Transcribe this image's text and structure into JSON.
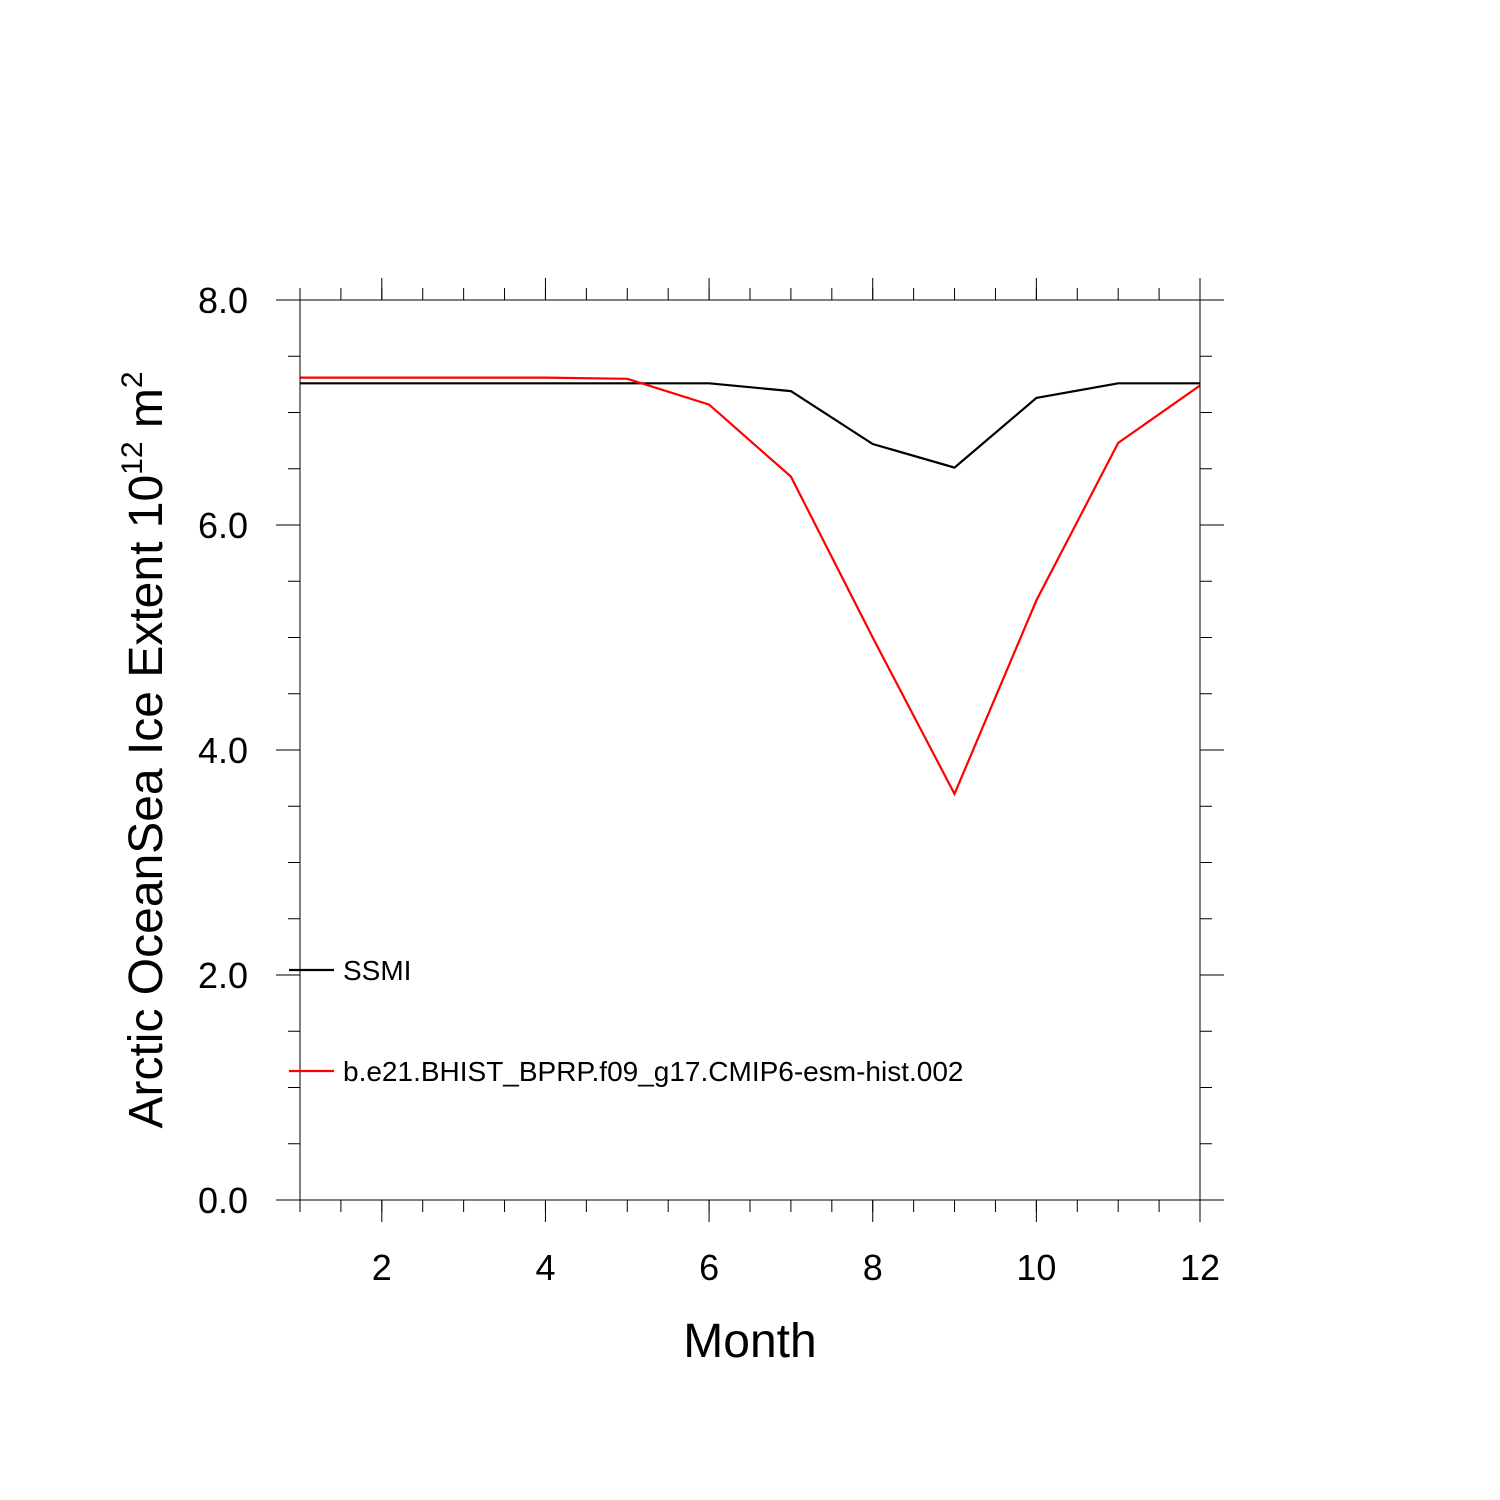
{
  "chart_data": {
    "type": "line",
    "xlabel": "Month",
    "ylabel": {
      "text": "Arctic OceanSea Ice Extent 10",
      "exponent": "12",
      "unit": " m",
      "unit_exponent": "2"
    },
    "xlim": [
      1,
      12
    ],
    "ylim": [
      0,
      8
    ],
    "x_ticks": [
      2,
      4,
      6,
      8,
      10,
      12
    ],
    "x_tick_labels": [
      "2",
      "4",
      "6",
      "8",
      "10",
      "12"
    ],
    "y_ticks": [
      0,
      2,
      4,
      6,
      8
    ],
    "y_tick_labels": [
      "0.0",
      "2.0",
      "4.0",
      "6.0",
      "8.0"
    ],
    "x_minor_step": 0.5,
    "y_minor_step": 0.5,
    "grid": false,
    "legend_placement": "lower-left",
    "x": [
      1,
      2,
      3,
      4,
      5,
      6,
      7,
      8,
      9,
      10,
      11,
      12
    ],
    "series": [
      {
        "name": "SSMI",
        "color": "#000000",
        "values": [
          7.26,
          7.26,
          7.26,
          7.26,
          7.26,
          7.26,
          7.19,
          6.72,
          6.51,
          7.13,
          7.26,
          7.26
        ]
      },
      {
        "name": "b.e21.BHIST_BPRP.f09_g17.CMIP6-esm-hist.002",
        "color": "#ff0000",
        "values": [
          7.31,
          7.31,
          7.31,
          7.31,
          7.3,
          7.07,
          6.43,
          5.0,
          3.61,
          5.33,
          6.73,
          7.24
        ]
      }
    ]
  }
}
